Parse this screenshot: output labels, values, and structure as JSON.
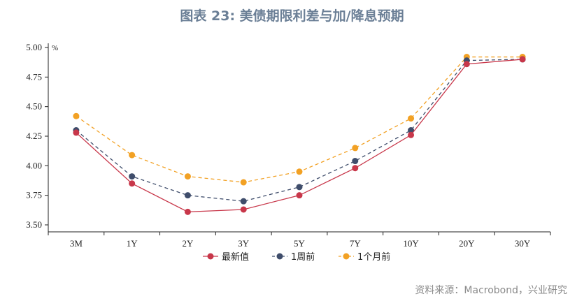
{
  "title": "图表 23: 美债期限利差与加/降息预期",
  "source": "资料来源：Macrobond，兴业研究",
  "chart_data": {
    "type": "line",
    "categories": [
      "3M",
      "1Y",
      "2Y",
      "3Y",
      "5Y",
      "7Y",
      "10Y",
      "20Y",
      "30Y"
    ],
    "unit": "%",
    "ylim": [
      3.5,
      5.0
    ],
    "yticks": [
      "3.50",
      "3.75",
      "4.00",
      "4.25",
      "4.50",
      "4.75",
      "5.00"
    ],
    "series": [
      {
        "name": "最新值",
        "color": "#c8374a",
        "style": "solid",
        "values": [
          4.28,
          3.85,
          3.61,
          3.63,
          3.75,
          3.98,
          4.26,
          4.86,
          4.9
        ]
      },
      {
        "name": "1周前",
        "color": "#3f4d6b",
        "style": "dashed",
        "values": [
          4.3,
          3.91,
          3.75,
          3.7,
          3.82,
          4.04,
          4.3,
          4.89,
          4.9
        ]
      },
      {
        "name": "1个月前",
        "color": "#f2a124",
        "style": "dashed",
        "values": [
          4.42,
          4.09,
          3.91,
          3.86,
          3.95,
          4.15,
          4.4,
          4.92,
          4.92
        ]
      }
    ]
  }
}
